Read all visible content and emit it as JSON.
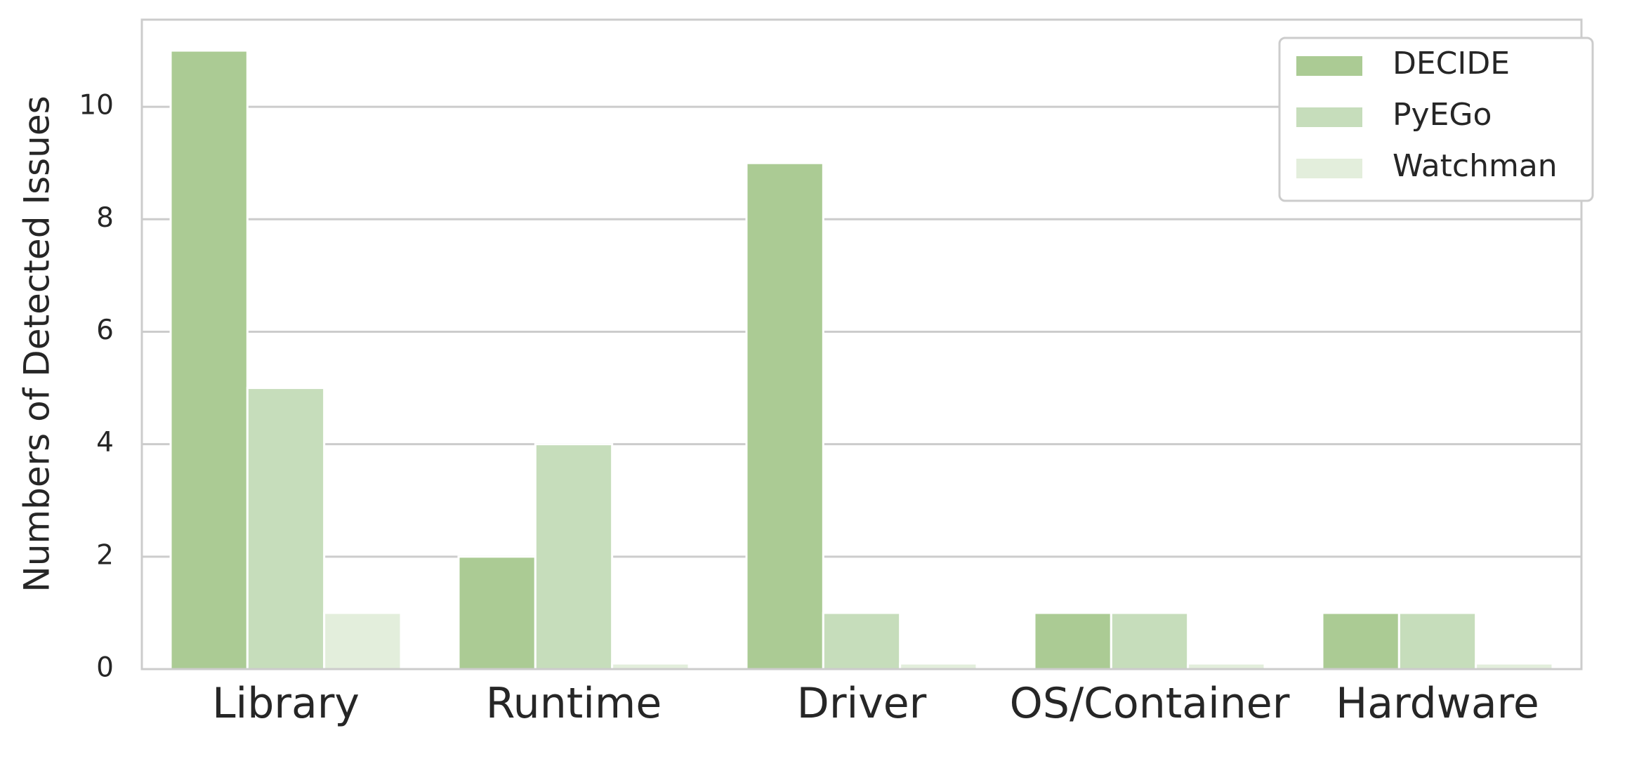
{
  "chart_data": {
    "type": "bar",
    "title": "",
    "xlabel": "",
    "ylabel": "Numbers of Detected Issues",
    "categories": [
      "Library",
      "Runtime",
      "Driver",
      "OS/Container",
      "Hardware"
    ],
    "series": [
      {
        "name": "DECIDE",
        "color": "#abcb94",
        "values": [
          11,
          2,
          9,
          1,
          1
        ]
      },
      {
        "name": "PyEGo",
        "color": "#c6ddbb",
        "values": [
          5,
          4,
          1,
          1,
          1
        ]
      },
      {
        "name": "Watchman",
        "color": "#e3eedc",
        "values": [
          1,
          0.1,
          0.1,
          0.1,
          0.1
        ]
      }
    ],
    "ylim": [
      0,
      11.55
    ],
    "yticks": [
      0,
      2,
      4,
      6,
      8,
      10
    ],
    "grid": "y",
    "legend": "top-right"
  }
}
